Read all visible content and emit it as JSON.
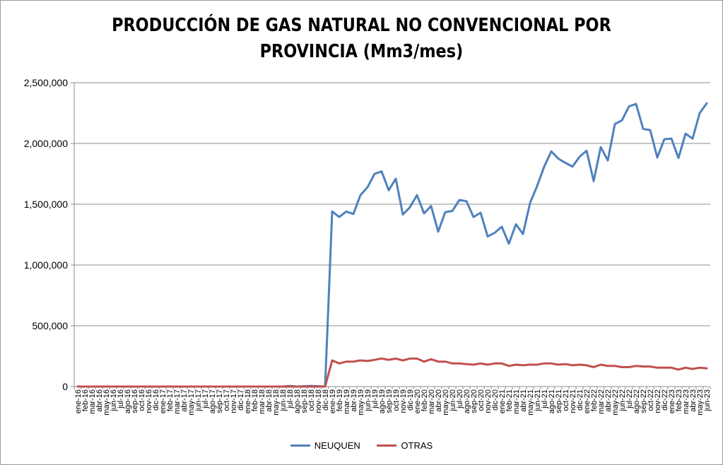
{
  "chart_data": {
    "type": "line",
    "title_lines": [
      "PRODUCCIÓN DE GAS NATURAL NO CONVENCIONAL POR",
      "PROVINCIA (Mm3/mes)"
    ],
    "xlabel": "",
    "ylabel": "",
    "ylim": [
      0,
      2500000
    ],
    "y_ticks": [
      "0",
      "500,000",
      "1,000,000",
      "1,500,000",
      "2,000,000",
      "2,500,000"
    ],
    "grid": "horizontal major only",
    "legend_position": "bottom",
    "categories": [
      "ene-16",
      "feb-16",
      "mar-16",
      "abr-16",
      "may-16",
      "jun-16",
      "jul-16",
      "ago-16",
      "sep-16",
      "oct-16",
      "nov-16",
      "dic-16",
      "ene-17",
      "feb-17",
      "mar-17",
      "abr-17",
      "may-17",
      "jun-17",
      "jul-17",
      "ago-17",
      "sep-17",
      "oct-17",
      "nov-17",
      "dic-17",
      "ene-18",
      "feb-18",
      "mar-18",
      "abr-18",
      "may-18",
      "jun-18",
      "jul-18",
      "ago-18",
      "sep-18",
      "oct-18",
      "nov-18",
      "dic-18",
      "ene-19",
      "feb-19",
      "mar-19",
      "abr-19",
      "may-19",
      "jun-19",
      "jul-19",
      "ago-19",
      "sep-19",
      "oct-19",
      "nov-19",
      "dic-19",
      "ene-20",
      "feb-20",
      "mar-20",
      "abr-20",
      "may-20",
      "jun-20",
      "jul-20",
      "ago-20",
      "sep-20",
      "oct-20",
      "nov-20",
      "dic-20",
      "ene-21",
      "feb-21",
      "mar-21",
      "abr-21",
      "may-21",
      "jun-21",
      "jul-21",
      "ago-21",
      "sep-21",
      "oct-21",
      "nov-21",
      "dic-21",
      "ene-22",
      "feb-22",
      "mar-22",
      "abr-22",
      "may-22",
      "jun-22",
      "jul-22",
      "ago-22",
      "sep-22",
      "oct-22",
      "nov-22",
      "dic-22",
      "ene-23",
      "feb-23",
      "mar-23",
      "abr-23",
      "may-23",
      "jun-23"
    ],
    "series": [
      {
        "name": "NEUQUEN",
        "color": "#4f81bd",
        "values": [
          0,
          0,
          0,
          0,
          0,
          0,
          0,
          0,
          0,
          0,
          0,
          0,
          0,
          0,
          0,
          0,
          0,
          0,
          0,
          0,
          0,
          0,
          0,
          0,
          0,
          0,
          0,
          0,
          0,
          0,
          5000,
          0,
          3000,
          5000,
          3000,
          0,
          1440000,
          1395000,
          1440000,
          1420000,
          1575000,
          1640000,
          1750000,
          1770000,
          1615000,
          1710000,
          1415000,
          1475000,
          1575000,
          1425000,
          1485000,
          1275000,
          1435000,
          1445000,
          1535000,
          1525000,
          1395000,
          1430000,
          1235000,
          1265000,
          1315000,
          1175000,
          1335000,
          1255000,
          1510000,
          1650000,
          1810000,
          1935000,
          1875000,
          1840000,
          1810000,
          1890000,
          1940000,
          1690000,
          1970000,
          1860000,
          2160000,
          2190000,
          2305000,
          2325000,
          2120000,
          2110000,
          1885000,
          2035000,
          2040000,
          1880000,
          2080000,
          2040000,
          2250000,
          2330000
        ]
      },
      {
        "name": "OTRAS",
        "color": "#c0504d",
        "values": [
          0,
          0,
          0,
          0,
          0,
          0,
          0,
          0,
          0,
          0,
          0,
          0,
          0,
          0,
          0,
          0,
          0,
          0,
          0,
          0,
          0,
          0,
          0,
          0,
          0,
          0,
          0,
          0,
          0,
          0,
          0,
          0,
          0,
          0,
          0,
          0,
          215000,
          190000,
          205000,
          205000,
          215000,
          210000,
          220000,
          230000,
          220000,
          230000,
          215000,
          230000,
          230000,
          205000,
          225000,
          205000,
          205000,
          190000,
          190000,
          185000,
          180000,
          190000,
          180000,
          190000,
          190000,
          170000,
          180000,
          175000,
          180000,
          180000,
          190000,
          190000,
          180000,
          185000,
          175000,
          180000,
          175000,
          160000,
          180000,
          170000,
          170000,
          160000,
          160000,
          170000,
          165000,
          165000,
          155000,
          155000,
          155000,
          140000,
          155000,
          145000,
          155000,
          150000
        ]
      }
    ]
  }
}
